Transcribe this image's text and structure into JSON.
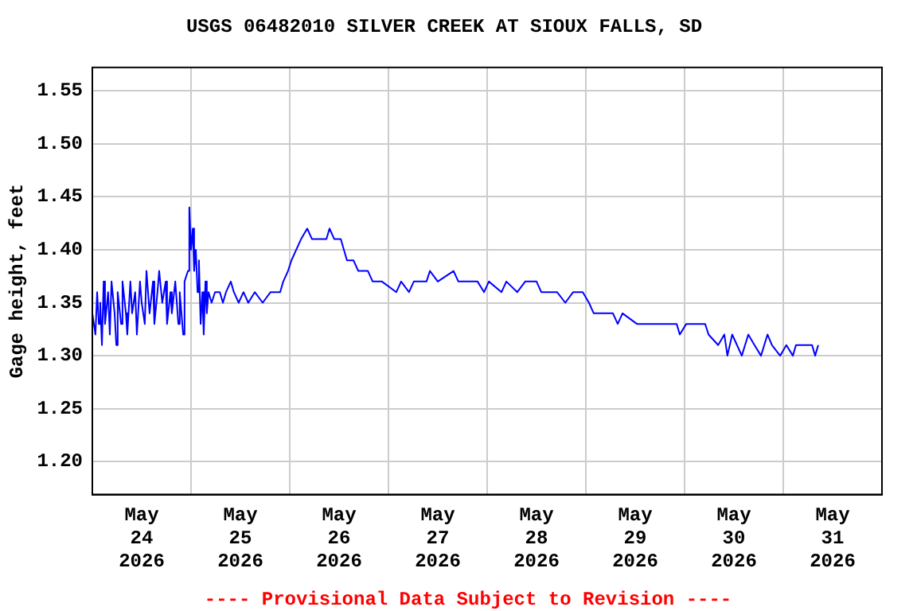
{
  "chart_data": {
    "type": "line",
    "title": "USGS 06482010 SILVER CREEK AT SIOUX FALLS, SD",
    "ylabel": "Gage height, feet",
    "annotations": [
      "---- Provisional Data Subject to Revision ----"
    ],
    "x": [
      "2026-05-24T00:00",
      "2026-05-24T00:45",
      "2026-05-24T01:10",
      "2026-05-24T01:35",
      "2026-05-24T01:55",
      "2026-05-24T02:20",
      "2026-05-24T02:45",
      "2026-05-24T03:05",
      "2026-05-24T03:50",
      "2026-05-24T04:15",
      "2026-05-24T04:40",
      "2026-05-24T05:25",
      "2026-05-24T05:50",
      "2026-05-24T06:10",
      "2026-05-24T07:00",
      "2026-05-24T07:20",
      "2026-05-24T08:10",
      "2026-05-24T08:30",
      "2026-05-24T09:15",
      "2026-05-24T09:40",
      "2026-05-24T10:25",
      "2026-05-24T10:50",
      "2026-05-24T11:35",
      "2026-05-24T12:00",
      "2026-05-24T12:45",
      "2026-05-24T13:10",
      "2026-05-24T13:55",
      "2026-05-24T14:45",
      "2026-05-24T15:05",
      "2026-05-24T15:50",
      "2026-05-24T16:15",
      "2026-05-24T17:00",
      "2026-05-24T17:50",
      "2026-05-24T18:10",
      "2026-05-24T19:00",
      "2026-05-24T19:20",
      "2026-05-24T20:10",
      "2026-05-24T20:55",
      "2026-05-24T21:15",
      "2026-05-24T22:05",
      "2026-05-24T22:25",
      "2026-05-24T23:15",
      "2026-05-24T23:35",
      "2026-05-25T00:00",
      "2026-05-25T00:25",
      "2026-05-25T00:45",
      "2026-05-25T01:10",
      "2026-05-25T01:35",
      "2026-05-25T01:55",
      "2026-05-25T02:20",
      "2026-05-25T02:45",
      "2026-05-25T03:05",
      "2026-05-25T03:30",
      "2026-05-25T03:50",
      "2026-05-25T04:15",
      "2026-05-25T05:00",
      "2026-05-25T05:50",
      "2026-05-25T07:00",
      "2026-05-25T07:45",
      "2026-05-25T08:30",
      "2026-05-25T09:40",
      "2026-05-25T10:25",
      "2026-05-25T11:35",
      "2026-05-25T12:45",
      "2026-05-25T13:55",
      "2026-05-25T15:30",
      "2026-05-25T17:25",
      "2026-05-25T19:20",
      "2026-05-25T21:40",
      "2026-05-25T22:25",
      "2026-05-25T23:35",
      "2026-05-26T00:25",
      "2026-05-26T01:35",
      "2026-05-26T02:45",
      "2026-05-26T04:15",
      "2026-05-26T05:25",
      "2026-05-26T08:55",
      "2026-05-26T09:40",
      "2026-05-26T10:50",
      "2026-05-26T12:25",
      "2026-05-26T13:10",
      "2026-05-26T13:55",
      "2026-05-26T15:30",
      "2026-05-26T16:40",
      "2026-05-26T17:50",
      "2026-05-26T19:00",
      "2026-05-26T20:10",
      "2026-05-26T22:25",
      "2026-05-27T01:55",
      "2026-05-27T03:05",
      "2026-05-27T05:00",
      "2026-05-27T06:10",
      "2026-05-27T09:15",
      "2026-05-27T10:05",
      "2026-05-27T12:00",
      "2026-05-27T15:50",
      "2026-05-27T17:00",
      "2026-05-27T21:40",
      "2026-05-27T23:15",
      "2026-05-28T00:25",
      "2026-05-28T03:30",
      "2026-05-28T04:40",
      "2026-05-28T07:20",
      "2026-05-28T09:15",
      "2026-05-28T12:00",
      "2026-05-28T13:10",
      "2026-05-28T17:00",
      "2026-05-28T19:00",
      "2026-05-28T20:55",
      "2026-05-28T23:15",
      "2026-05-29T00:45",
      "2026-05-29T01:55",
      "2026-05-29T06:35",
      "2026-05-29T07:45",
      "2026-05-29T08:55",
      "2026-05-29T12:25",
      "2026-05-29T16:15",
      "2026-05-29T22:05",
      "2026-05-29T22:50",
      "2026-05-30T00:25",
      "2026-05-30T05:00",
      "2026-05-30T05:50",
      "2026-05-30T08:10",
      "2026-05-30T09:40",
      "2026-05-30T10:25",
      "2026-05-30T11:35",
      "2026-05-30T12:45",
      "2026-05-30T13:55",
      "2026-05-30T15:30",
      "2026-05-30T17:00",
      "2026-05-30T18:35",
      "2026-05-30T20:10",
      "2026-05-30T21:15",
      "2026-05-30T23:15",
      "2026-05-31T00:45",
      "2026-05-31T02:20",
      "2026-05-31T03:05",
      "2026-05-31T07:00",
      "2026-05-31T07:45",
      "2026-05-31T08:30"
    ],
    "series": [
      {
        "color": "#0000ff",
        "values": [
          1.34,
          1.32,
          1.36,
          1.33,
          1.35,
          1.31,
          1.37,
          1.33,
          1.36,
          1.32,
          1.37,
          1.34,
          1.31,
          1.36,
          1.33,
          1.37,
          1.34,
          1.32,
          1.37,
          1.34,
          1.36,
          1.32,
          1.37,
          1.35,
          1.33,
          1.38,
          1.34,
          1.37,
          1.33,
          1.36,
          1.38,
          1.35,
          1.37,
          1.33,
          1.36,
          1.34,
          1.37,
          1.33,
          1.36,
          1.32,
          1.37,
          1.38,
          1.44,
          1.4,
          1.42,
          1.38,
          1.4,
          1.36,
          1.39,
          1.33,
          1.36,
          1.32,
          1.37,
          1.34,
          1.36,
          1.35,
          1.36,
          1.36,
          1.35,
          1.36,
          1.37,
          1.36,
          1.35,
          1.36,
          1.35,
          1.36,
          1.35,
          1.36,
          1.36,
          1.37,
          1.38,
          1.39,
          1.4,
          1.41,
          1.42,
          1.41,
          1.41,
          1.42,
          1.41,
          1.41,
          1.4,
          1.39,
          1.39,
          1.38,
          1.38,
          1.38,
          1.37,
          1.37,
          1.36,
          1.37,
          1.36,
          1.37,
          1.37,
          1.38,
          1.37,
          1.38,
          1.37,
          1.37,
          1.36,
          1.37,
          1.36,
          1.37,
          1.36,
          1.37,
          1.37,
          1.36,
          1.36,
          1.35,
          1.36,
          1.36,
          1.35,
          1.34,
          1.34,
          1.33,
          1.34,
          1.33,
          1.33,
          1.33,
          1.32,
          1.33,
          1.33,
          1.32,
          1.31,
          1.32,
          1.3,
          1.32,
          1.31,
          1.3,
          1.32,
          1.31,
          1.3,
          1.32,
          1.31,
          1.3,
          1.31,
          1.3,
          1.31,
          1.31,
          1.3,
          1.31
        ]
      }
    ],
    "xlim": [
      "2026-05-24T00:00",
      "2026-06-01T00:00"
    ],
    "xticks": [
      {
        "value": "2026-05-24T12:00",
        "label": "May 24 2026"
      },
      {
        "value": "2026-05-25T00:00",
        "label": null
      },
      {
        "value": "2026-05-25T12:00",
        "label": "May 25 2026"
      },
      {
        "value": "2026-05-26T00:00",
        "label": null
      },
      {
        "value": "2026-05-26T12:00",
        "label": "May 26 2026"
      },
      {
        "value": "2026-05-27T00:00",
        "label": null
      },
      {
        "value": "2026-05-27T12:00",
        "label": "May 27 2026"
      },
      {
        "value": "2026-05-28T00:00",
        "label": null
      },
      {
        "value": "2026-05-28T12:00",
        "label": "May 28 2026"
      },
      {
        "value": "2026-05-29T00:00",
        "label": null
      },
      {
        "value": "2026-05-29T12:00",
        "label": "May 29 2026"
      },
      {
        "value": "2026-05-30T00:00",
        "label": null
      },
      {
        "value": "2026-05-30T12:00",
        "label": "May 30 2026"
      },
      {
        "value": "2026-05-31T00:00",
        "label": null
      },
      {
        "value": "2026-05-31T12:00",
        "label": "May 31 2026"
      }
    ],
    "ylim": [
      1.169,
      1.572
    ],
    "yticks": [
      {
        "value": 1.2,
        "label": "1.20"
      },
      1.25,
      {
        "value": 1.3,
        "label": "1.30"
      },
      1.35,
      {
        "value": 1.4,
        "label": "1.40"
      },
      1.45,
      {
        "value": 1.5,
        "label": "1.50"
      },
      1.55
    ],
    "grid": true,
    "legend": false,
    "marker": "none",
    "line_style": "solid"
  }
}
